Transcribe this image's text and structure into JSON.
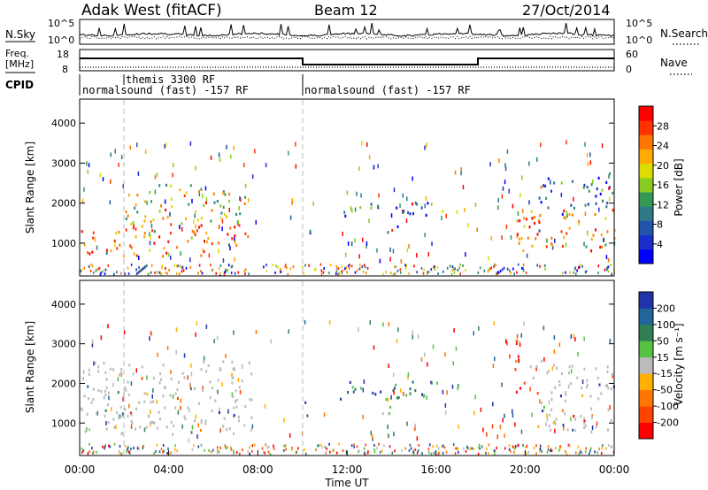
{
  "header": {
    "title": "Adak West (fitACF)",
    "beam": "Beam 12",
    "date": "27/Oct/2014"
  },
  "left_labels": {
    "nsky": "N.Sky",
    "freq_1": "Freq.",
    "freq_2": "[MHz]",
    "cpid": "CPID"
  },
  "right_labels": {
    "nsearch": "N.Search",
    "nave": "Nave"
  },
  "noise_panel": {
    "left_ticks": [
      "10^5",
      "10^0"
    ],
    "right_ticks": [
      "10^5",
      "10^0"
    ]
  },
  "freq_panel": {
    "left_ticks": [
      "18",
      "8"
    ],
    "right_ticks": [
      "60",
      "0"
    ]
  },
  "cpid_panel": {
    "label_upper": "themis 3300 RF",
    "label_left": "normalsound (fast) -157 RF",
    "label_right": "normalsound (fast) -157 RF"
  },
  "power_colorbar": {
    "label": "Power [dB]",
    "ticks": [
      "28",
      "24",
      "20",
      "16",
      "12",
      "8",
      "4"
    ],
    "colors": [
      "#ff0000",
      "#ff3300",
      "#ff7700",
      "#ffaa00",
      "#dcdc00",
      "#88cc22",
      "#339955",
      "#2f7a88",
      "#2255aa",
      "#1a2ecc",
      "#0000ff"
    ]
  },
  "velocity_colorbar": {
    "label": "Velocity [m s⁻¹]",
    "ticks": [
      "200",
      "100",
      "50",
      "15",
      "-15",
      "-50",
      "-100",
      "-200"
    ],
    "colors": [
      "#2233aa",
      "#226699",
      "#337f55",
      "#55c244",
      "#bbbbbb",
      "#ffb000",
      "#ff7700",
      "#ff4400",
      "#ff0000"
    ]
  },
  "chart_data": [
    {
      "type": "heatmap",
      "name": "power",
      "ylabel": "Slant Range [km]",
      "ylim": [
        180,
        4600
      ],
      "yticks": [
        1000,
        2000,
        3000,
        4000
      ],
      "xlim": [
        0,
        24
      ],
      "echo_regions": [
        {
          "t0": 0.0,
          "t1": 7.7,
          "r0": 700,
          "r1": 1500,
          "level": "high"
        },
        {
          "t0": 2.0,
          "t1": 7.5,
          "r0": 1500,
          "r1": 2500,
          "level": "medium"
        },
        {
          "t0": 9.9,
          "t1": 10.4,
          "r0": 1200,
          "r1": 1600,
          "level": "low"
        },
        {
          "t0": 11.5,
          "t1": 16.3,
          "r0": 1700,
          "r1": 2100,
          "level": "low"
        },
        {
          "t0": 13.0,
          "t1": 14.5,
          "r0": 1250,
          "r1": 1450,
          "level": "medium"
        },
        {
          "t0": 19.5,
          "t1": 24.0,
          "r0": 800,
          "r1": 1900,
          "level": "high"
        },
        {
          "t0": 20.5,
          "t1": 24.0,
          "r0": 1900,
          "r1": 2800,
          "level": "low"
        }
      ]
    },
    {
      "type": "heatmap",
      "name": "velocity",
      "ylabel": "Slant Range [km]",
      "ylim": [
        180,
        4600
      ],
      "yticks": [
        1000,
        2000,
        3000,
        4000
      ],
      "xlim": [
        0,
        24
      ],
      "xticks": [
        "00:00",
        "04:00",
        "08:00",
        "12:00",
        "16:00",
        "20:00",
        "00:00"
      ],
      "xlabel": "Time UT",
      "echo_regions": [
        {
          "t0": 0.0,
          "t1": 7.7,
          "r0": 700,
          "r1": 2600,
          "level": "ground"
        },
        {
          "t0": 9.9,
          "t1": 10.4,
          "r0": 1200,
          "r1": 1600,
          "level": "strong-away"
        },
        {
          "t0": 11.5,
          "t1": 16.3,
          "r0": 1600,
          "r1": 2100,
          "level": "away"
        },
        {
          "t0": 13.0,
          "t1": 14.5,
          "r0": 1250,
          "r1": 1450,
          "level": "slow-away"
        },
        {
          "t0": 19.5,
          "t1": 20.0,
          "r0": 1600,
          "r1": 3400,
          "level": "toward"
        },
        {
          "t0": 20.2,
          "t1": 24.0,
          "r0": 800,
          "r1": 2600,
          "level": "ground"
        }
      ]
    }
  ]
}
